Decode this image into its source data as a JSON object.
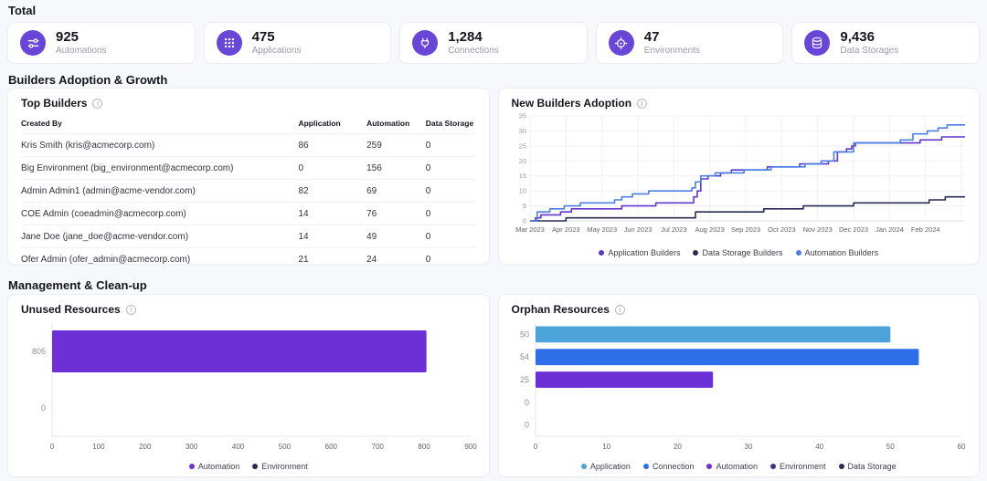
{
  "sections": {
    "total": "Total",
    "builders": "Builders Adoption & Growth",
    "management": "Management & Clean-up"
  },
  "icons": {
    "info": "i"
  },
  "colors": {
    "accent_purple": "#6847d8",
    "page_bg": "#f7f8fc",
    "card_border": "#ebebf2"
  },
  "stats": [
    {
      "value": "925",
      "label": "Automations",
      "icon": "automations-icon"
    },
    {
      "value": "475",
      "label": "Applications",
      "icon": "applications-icon"
    },
    {
      "value": "1,284",
      "label": "Connections",
      "icon": "connections-icon"
    },
    {
      "value": "47",
      "label": "Environments",
      "icon": "environments-icon"
    },
    {
      "value": "9,436",
      "label": "Data Storages",
      "icon": "data-storages-icon"
    }
  ],
  "top_builders": {
    "title": "Top Builders",
    "columns": [
      "Created By",
      "Application",
      "Automation",
      "Data Storage"
    ],
    "rows": [
      {
        "created_by": "Kris Smith (kris@acmecorp.com)",
        "application": "86",
        "automation": "259",
        "data_storage": "0"
      },
      {
        "created_by": "Big Environment (big_environment@acmecorp.com)",
        "application": "0",
        "automation": "156",
        "data_storage": "0"
      },
      {
        "created_by": "Admin Admin1 (admin@acme-vendor.com)",
        "application": "82",
        "automation": "69",
        "data_storage": "0"
      },
      {
        "created_by": "COE Admin (coeadmin@acmecorp.com)",
        "application": "14",
        "automation": "76",
        "data_storage": "0"
      },
      {
        "created_by": "Jane Doe (jane_doe@acme-vendor.com)",
        "application": "14",
        "automation": "49",
        "data_storage": "0"
      },
      {
        "created_by": "Ofer Admin (ofer_admin@acmecorp.com)",
        "application": "21",
        "automation": "24",
        "data_storage": "0"
      }
    ]
  },
  "chart_data": [
    {
      "id": "new_builders_adoption",
      "type": "line",
      "line_style": "step",
      "title": "New Builders Adoption",
      "x_tick_labels": [
        "Mar 2023",
        "Apr 2023",
        "May 2023",
        "Jun 2023",
        "Jul 2023",
        "Aug 2023",
        "Sep 2023",
        "Oct 2023",
        "Nov 2023",
        "Dec 2023",
        "Jan 2024",
        "Feb 2024"
      ],
      "x_domain": [
        0,
        12.1
      ],
      "ylim": [
        0,
        35
      ],
      "y_ticks": [
        0,
        5,
        10,
        15,
        20,
        25,
        30,
        35
      ],
      "grid": true,
      "legend_position": "bottom",
      "series": [
        {
          "name": "Application Builders",
          "color": "#6036cc",
          "points": [
            [
              0,
              0
            ],
            [
              0.15,
              1
            ],
            [
              0.3,
              2
            ],
            [
              0.85,
              3
            ],
            [
              1.15,
              4
            ],
            [
              2.55,
              5
            ],
            [
              3.5,
              6
            ],
            [
              4.55,
              8
            ],
            [
              4.65,
              10
            ],
            [
              4.75,
              14
            ],
            [
              4.95,
              15
            ],
            [
              5.3,
              16
            ],
            [
              5.6,
              17
            ],
            [
              6.6,
              18
            ],
            [
              7.5,
              19
            ],
            [
              8.3,
              20
            ],
            [
              8.55,
              23
            ],
            [
              8.8,
              24
            ],
            [
              8.95,
              25
            ],
            [
              9.05,
              26
            ],
            [
              10.85,
              27
            ],
            [
              11.45,
              28
            ]
          ]
        },
        {
          "name": "Data Storage Builders",
          "color": "#272b50",
          "points": [
            [
              0,
              0
            ],
            [
              1.0,
              1
            ],
            [
              4.6,
              3
            ],
            [
              6.5,
              4
            ],
            [
              7.6,
              5
            ],
            [
              9.0,
              6
            ],
            [
              11.1,
              7
            ],
            [
              11.55,
              8
            ]
          ]
        },
        {
          "name": "Automation Builders",
          "color": "#4b7fe3",
          "points": [
            [
              0,
              0
            ],
            [
              0.2,
              3
            ],
            [
              0.55,
              4
            ],
            [
              0.95,
              5
            ],
            [
              1.4,
              6
            ],
            [
              2.35,
              7
            ],
            [
              2.55,
              8
            ],
            [
              2.85,
              9
            ],
            [
              3.3,
              10
            ],
            [
              4.5,
              11
            ],
            [
              4.6,
              13
            ],
            [
              4.75,
              15
            ],
            [
              5.15,
              16
            ],
            [
              5.95,
              17
            ],
            [
              6.7,
              18
            ],
            [
              7.65,
              19
            ],
            [
              8.1,
              20
            ],
            [
              8.45,
              23
            ],
            [
              9.0,
              26
            ],
            [
              10.3,
              27
            ],
            [
              10.65,
              29
            ],
            [
              11.05,
              30
            ],
            [
              11.35,
              31
            ],
            [
              11.6,
              32
            ]
          ]
        }
      ]
    },
    {
      "id": "unused_resources",
      "type": "bar",
      "orientation": "horizontal",
      "title": "Unused Resources",
      "categories": [
        "805",
        "0"
      ],
      "values": [
        805,
        0
      ],
      "bar_colors": [
        "#6d2fd6",
        "#272b50"
      ],
      "xlim": [
        0,
        900
      ],
      "x_ticks": [
        0,
        100,
        200,
        300,
        400,
        500,
        600,
        700,
        800,
        900
      ],
      "legend_position": "bottom",
      "legend": [
        {
          "name": "Automation",
          "color": "#6d2fd6"
        },
        {
          "name": "Environment",
          "color": "#272b50"
        }
      ]
    },
    {
      "id": "orphan_resources",
      "type": "bar",
      "orientation": "horizontal",
      "title": "Orphan Resources",
      "categories": [
        "50",
        "54",
        "25",
        "0",
        "0"
      ],
      "values": [
        50,
        54,
        25,
        0,
        0
      ],
      "bar_colors": [
        "#4ba3da",
        "#2d6ee9",
        "#6d2fd6",
        "#3c3488",
        "#272b50"
      ],
      "xlim": [
        0,
        60
      ],
      "x_ticks": [
        0,
        10,
        20,
        30,
        40,
        50,
        60
      ],
      "legend_position": "bottom",
      "legend": [
        {
          "name": "Application",
          "color": "#4ba3da"
        },
        {
          "name": "Connection",
          "color": "#2d6ee9"
        },
        {
          "name": "Automation",
          "color": "#6d2fd6"
        },
        {
          "name": "Environment",
          "color": "#3c3488"
        },
        {
          "name": "Data Storage",
          "color": "#272b50"
        }
      ]
    }
  ]
}
